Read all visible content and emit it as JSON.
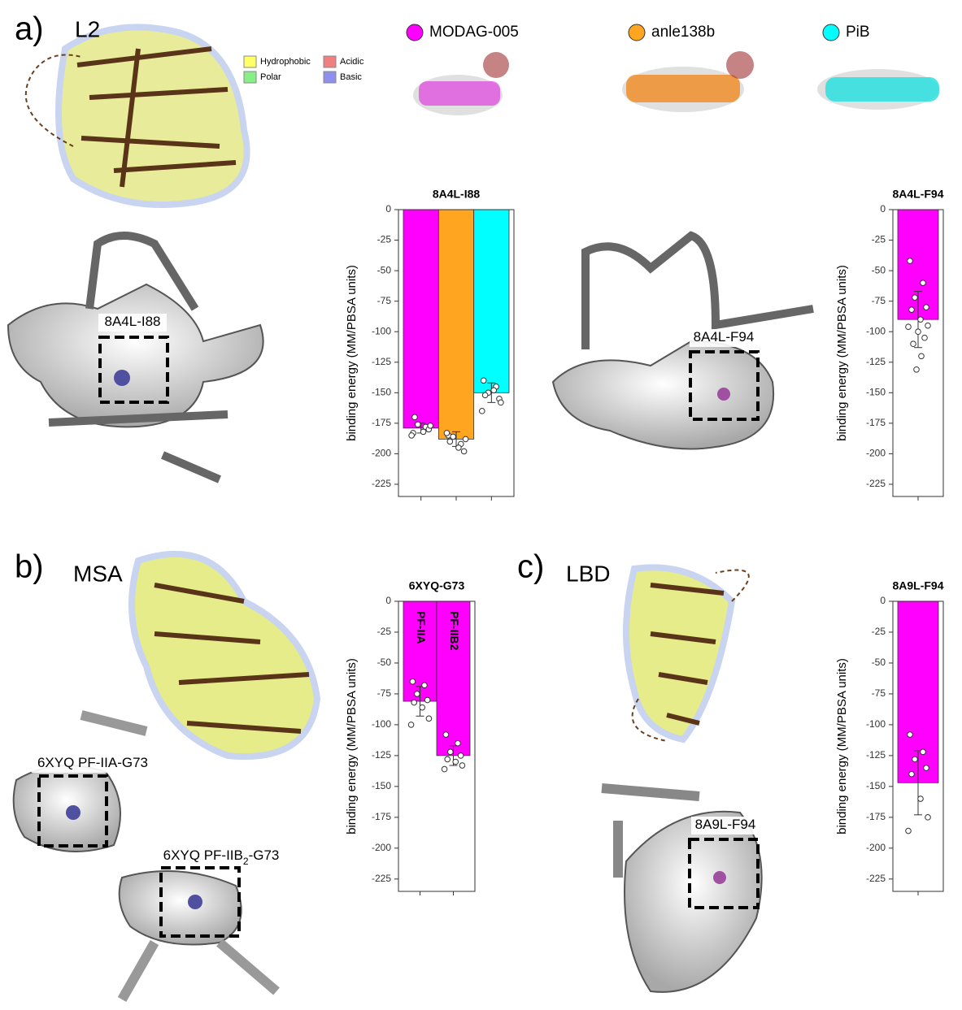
{
  "chart_data": [
    {
      "type": "bar",
      "title": "8A4L-I88",
      "y_label": "binding energy (MM/PBSA units)",
      "categories": [
        null,
        null,
        null
      ],
      "values": [
        -179,
        -188,
        -150
      ],
      "errors": [
        4,
        6,
        8
      ],
      "colors": [
        "#ff00ff",
        "#ffa51f",
        "#00ffff"
      ],
      "points": [
        [
          -183,
          -178,
          -176,
          -180,
          -170,
          -182,
          -177,
          -185
        ],
        [
          -185,
          -192,
          -186,
          -198,
          -190,
          -195,
          -188,
          -183
        ],
        [
          -140,
          -145,
          -150,
          -155,
          -152,
          -148,
          -158,
          -165
        ]
      ],
      "ylim": [
        -235,
        0
      ],
      "yticks": [
        0,
        -25,
        -50,
        -75,
        -100,
        -125,
        -150,
        -175,
        -200,
        -225
      ]
    },
    {
      "type": "bar",
      "title": "8A4L-F94",
      "y_label": "binding energy (MM/PBSA units)",
      "categories": [
        null
      ],
      "values": [
        -90
      ],
      "errors": [
        23
      ],
      "colors": [
        "#ff00ff"
      ],
      "points": [
        [
          -42,
          -60,
          -72,
          -80,
          -82,
          -90,
          -95,
          -96,
          -100,
          -105,
          -110,
          -120,
          -131
        ]
      ],
      "ylim": [
        -235,
        0
      ],
      "yticks": [
        0,
        -25,
        -50,
        -75,
        -100,
        -125,
        -150,
        -175,
        -200,
        -225
      ]
    },
    {
      "type": "bar",
      "title": "6XYQ-G73",
      "y_label": "binding energy (MM/PBSA units)",
      "categories": [
        "PF-IIA",
        "PF-IIB2"
      ],
      "values": [
        -81,
        -125
      ],
      "errors": [
        12,
        8
      ],
      "colors": [
        "#ff00ff",
        "#ff00ff"
      ],
      "points": [
        [
          -65,
          -68,
          -75,
          -80,
          -82,
          -86,
          -95,
          -100
        ],
        [
          -108,
          -115,
          -122,
          -125,
          -128,
          -130,
          -133,
          -136
        ]
      ],
      "ylim": [
        -235,
        0
      ],
      "yticks": [
        0,
        -25,
        -50,
        -75,
        -100,
        -125,
        -150,
        -175,
        -200,
        -225
      ]
    },
    {
      "type": "bar",
      "title": "8A9L-F94",
      "y_label": "binding energy (MM/PBSA units)",
      "categories": [
        null
      ],
      "values": [
        -147
      ],
      "errors": [
        26
      ],
      "colors": [
        "#ff00ff"
      ],
      "points": [
        [
          -108,
          -122,
          -128,
          -135,
          -140,
          -160,
          -175,
          -186
        ]
      ],
      "ylim": [
        -235,
        0
      ],
      "yticks": [
        0,
        -25,
        -50,
        -75,
        -100,
        -125,
        -150,
        -175,
        -200,
        -225
      ]
    }
  ],
  "legend": [
    {
      "name": "MODAG-005",
      "color": "#ff00ff"
    },
    {
      "name": "anle138b",
      "color": "#ffa51f"
    },
    {
      "name": "PiB",
      "color": "#00ffff"
    }
  ],
  "panels": [
    {
      "letter": "a)",
      "name": "L2"
    },
    {
      "letter": "b)",
      "name": "MSA"
    },
    {
      "letter": "c)",
      "name": "LBD"
    }
  ],
  "residue_legend": [
    {
      "name": "Hydrophobic",
      "color": "#ffff66"
    },
    {
      "name": "Acidic",
      "color": "#f08080"
    },
    {
      "name": "Polar",
      "color": "#88ee88"
    },
    {
      "name": "Basic",
      "color": "#8f8fee"
    }
  ],
  "structure_labels": [
    [
      "8A4L-I88"
    ],
    [
      "8A4L-F94"
    ],
    [
      "6XYQ PF-IIA-G73"
    ],
    [
      "6XYQ PF-IIB",
      "2",
      "-G73"
    ],
    [
      "8A9L-F94"
    ]
  ]
}
